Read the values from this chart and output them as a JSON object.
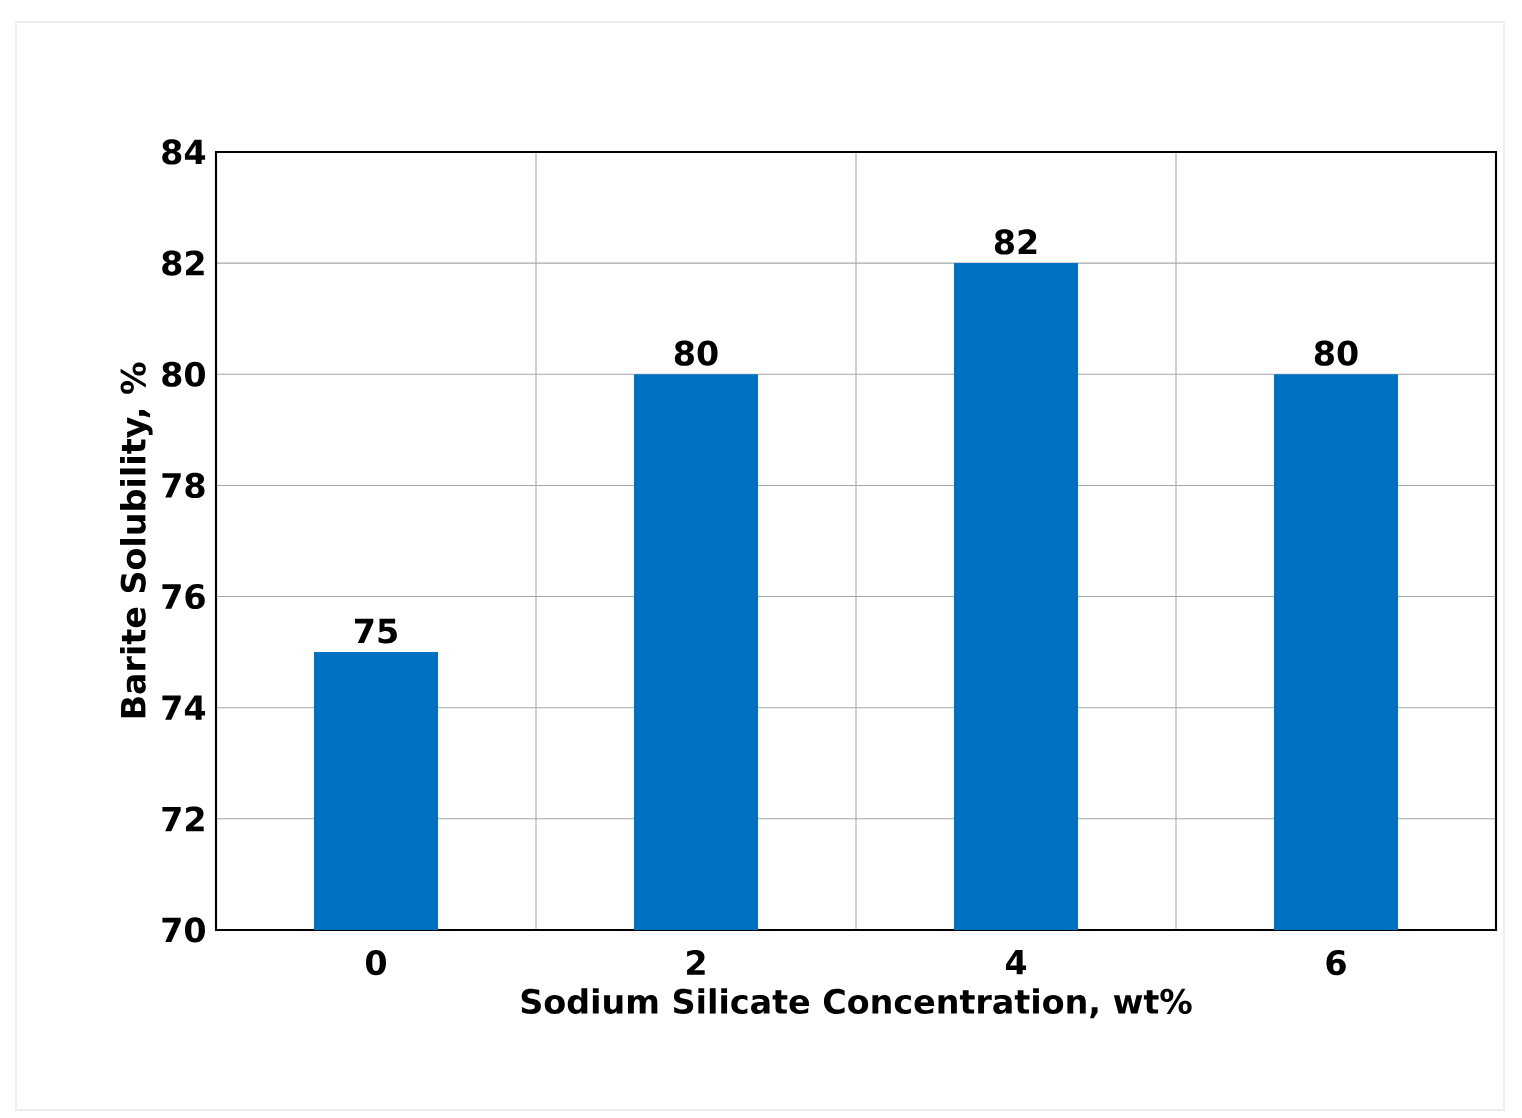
{
  "chart_data": {
    "type": "bar",
    "xlabel": "Sodium Silicate Concentration, wt%",
    "ylabel": "Barite Solubility, %",
    "categories": [
      "0",
      "2",
      "4",
      "6"
    ],
    "values": [
      75,
      80,
      82,
      80
    ],
    "color": "#0070c0",
    "ylim": [
      70,
      84
    ],
    "yticks": [
      70,
      72,
      74,
      76,
      78,
      80,
      82,
      84
    ],
    "grid": true,
    "data_labels": true
  }
}
